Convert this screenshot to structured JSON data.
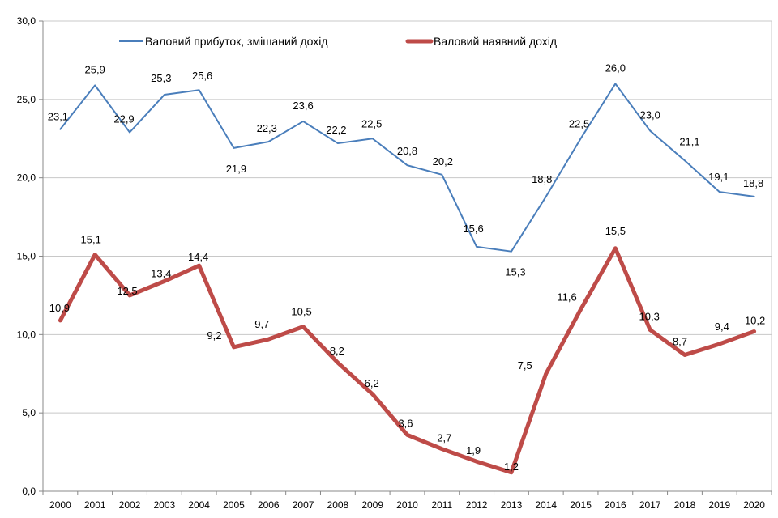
{
  "chart_data": {
    "type": "line",
    "title": "",
    "xlabel": "",
    "ylabel": "",
    "ylim": [
      0,
      30
    ],
    "y_ticks": [
      "0,0",
      "5,0",
      "10,0",
      "15,0",
      "20,0",
      "25,0",
      "30,0"
    ],
    "y_tick_values": [
      0,
      5,
      10,
      15,
      20,
      25,
      30
    ],
    "grid": "horizontal",
    "legend_position": "top",
    "categories": [
      "2000",
      "2001",
      "2002",
      "2003",
      "2004",
      "2005",
      "2006",
      "2007",
      "2008",
      "2009",
      "2010",
      "2011",
      "2012",
      "2013",
      "2014",
      "2015",
      "2016",
      "2017",
      "2018",
      "2019",
      "2020"
    ],
    "series": [
      {
        "name": "Валовий прибуток, змішаний дохід",
        "color": "#4a7ebb",
        "values": [
          23.1,
          25.9,
          22.9,
          25.3,
          25.6,
          21.9,
          22.3,
          23.6,
          22.2,
          22.5,
          20.8,
          20.2,
          15.6,
          15.3,
          18.8,
          22.5,
          26.0,
          23.0,
          21.1,
          19.1,
          18.8
        ],
        "labels": [
          "23,1",
          "25,9",
          "22,9",
          "25,3",
          "25,6",
          "21,9",
          "22,3",
          "23,6",
          "22,2",
          "22,5",
          "20,8",
          "20,2",
          "15,6",
          "15,3",
          "18,8",
          "22,5",
          "26,0",
          "23,0",
          "21,1",
          "19,1",
          "18,8"
        ]
      },
      {
        "name": "Валовий наявний дохід",
        "color": "#be4b48",
        "values": [
          10.9,
          15.1,
          12.5,
          13.4,
          14.4,
          9.2,
          9.7,
          10.5,
          8.2,
          6.2,
          3.6,
          2.7,
          1.9,
          1.2,
          7.5,
          11.6,
          15.5,
          10.3,
          8.7,
          9.4,
          10.2
        ],
        "labels": [
          "10,9",
          "15,1",
          "12,5",
          "13,4",
          "14,4",
          "9,2",
          "9,7",
          "10,5",
          "8,2",
          "6,2",
          "3,6",
          "2,7",
          "1,9",
          "1,2",
          "7,5",
          "11,6",
          "15,5",
          "10,3",
          "8,7",
          "9,4",
          "10,2"
        ]
      }
    ]
  }
}
